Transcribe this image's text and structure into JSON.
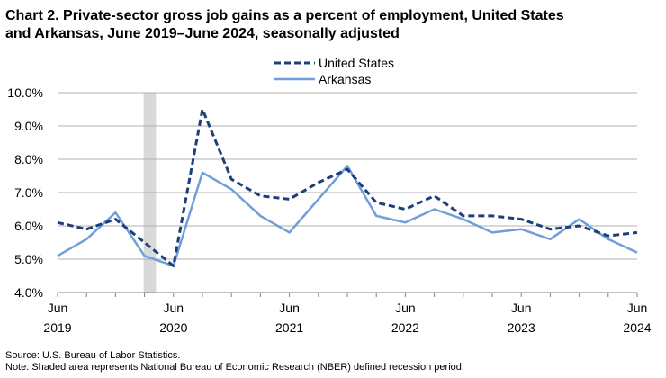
{
  "title_line1": "Chart 2. Private-sector gross job gains as a percent of employment, United States",
  "title_line2": "and Arkansas, June 2019–June 2024, seasonally adjusted",
  "source": "Source: U.S. Bureau of Labor Statistics.",
  "note": "Note: Shaded area represents National Bureau of Economic Research (NBER) defined recession period.",
  "chart_data": {
    "type": "line",
    "categories": [
      "Jun 2019",
      "Sep 2019",
      "Dec 2019",
      "Mar 2020",
      "Jun 2020",
      "Sep 2020",
      "Dec 2020",
      "Mar 2021",
      "Jun 2021",
      "Sep 2021",
      "Dec 2021",
      "Mar 2022",
      "Jun 2022",
      "Sep 2022",
      "Dec 2022",
      "Mar 2023",
      "Jun 2023",
      "Sep 2023",
      "Dec 2023",
      "Mar 2024",
      "Jun 2024"
    ],
    "x_tick_labels": [
      {
        "index": 0,
        "month": "Jun",
        "year": "2019"
      },
      {
        "index": 4,
        "month": "Jun",
        "year": "2020"
      },
      {
        "index": 8,
        "month": "Jun",
        "year": "2021"
      },
      {
        "index": 12,
        "month": "Jun",
        "year": "2022"
      },
      {
        "index": 16,
        "month": "Jun",
        "year": "2023"
      },
      {
        "index": 20,
        "month": "Jun",
        "year": "2024"
      }
    ],
    "ylim": [
      4.0,
      10.0
    ],
    "y_ticks": [
      "4.0%",
      "5.0%",
      "6.0%",
      "7.0%",
      "8.0%",
      "9.0%",
      "10.0%"
    ],
    "recession": {
      "from": "Mar 2020",
      "to": "Apr 2020",
      "color": "#d9d9d9"
    },
    "grid": "horizontal",
    "legend_placement": "top-center",
    "series": [
      {
        "name": "United States",
        "style": "dashed",
        "color": "#1f3f7a",
        "values": [
          6.1,
          5.9,
          6.2,
          5.5,
          4.8,
          9.5,
          7.4,
          6.9,
          6.8,
          7.3,
          7.7,
          6.7,
          6.5,
          6.9,
          6.3,
          6.3,
          6.2,
          5.9,
          6.0,
          5.7,
          5.8
        ]
      },
      {
        "name": "Arkansas",
        "style": "solid",
        "color": "#6f9fd8",
        "values": [
          5.1,
          5.6,
          6.4,
          5.1,
          4.8,
          7.6,
          7.1,
          6.3,
          5.8,
          6.8,
          7.8,
          6.3,
          6.1,
          6.5,
          6.2,
          5.8,
          5.9,
          5.6,
          6.2,
          5.6,
          5.2
        ]
      }
    ]
  }
}
